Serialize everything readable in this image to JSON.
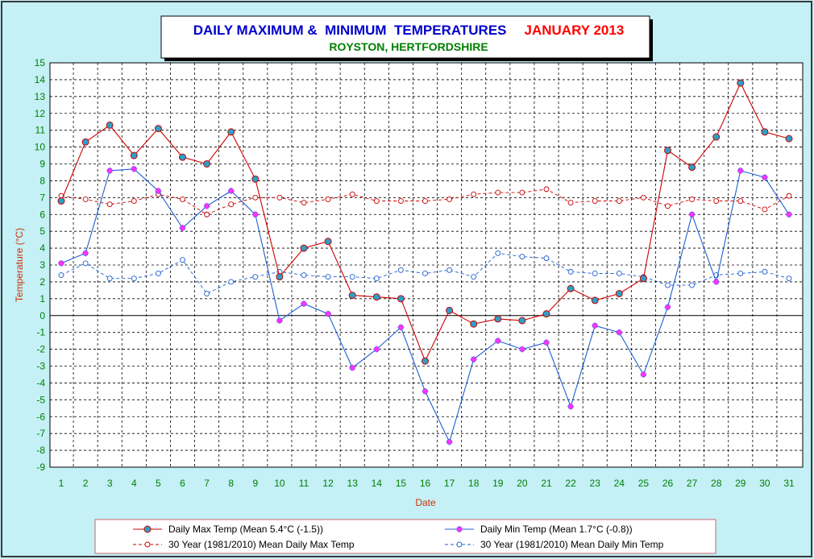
{
  "chart_data": {
    "type": "line",
    "title": "DAILY MAXIMUM &  MINIMUM  TEMPERATURES",
    "title_month": "JANUARY 2013",
    "subtitle": "ROYSTON, HERTFORDSHIRE",
    "xlabel": "Date",
    "ylabel": "Temperature (°C)",
    "ylim": [
      -9,
      15
    ],
    "yticks": [
      -9,
      -8,
      -7,
      -6,
      -5,
      -4,
      -3,
      -2,
      -1,
      0,
      1,
      2,
      3,
      4,
      5,
      6,
      7,
      8,
      9,
      10,
      11,
      12,
      13,
      14,
      15
    ],
    "x": [
      1,
      2,
      3,
      4,
      5,
      6,
      7,
      8,
      9,
      10,
      11,
      12,
      13,
      14,
      15,
      16,
      17,
      18,
      19,
      20,
      21,
      22,
      23,
      24,
      25,
      26,
      27,
      28,
      29,
      30,
      31
    ],
    "grid": true,
    "legend_position": "bottom",
    "colors": {
      "max": "#cc0000",
      "min": "#1f5fd0",
      "max_marker": "#2aa0c8",
      "min_marker": "#ff33ff",
      "axis_text": "#cc3300",
      "x_ticks": "#008000",
      "title_blue": "#0000cc",
      "title_red": "#ff0000",
      "subtitle": "#008000",
      "background": "#c4f0f6"
    },
    "series": [
      {
        "name": "Daily Max Temp (Mean 5.4°C (-1.5))",
        "style": "solid",
        "values": [
          6.8,
          10.3,
          11.3,
          9.5,
          11.1,
          9.4,
          9.0,
          10.9,
          8.1,
          2.3,
          4.0,
          4.4,
          1.2,
          1.1,
          1.0,
          -2.7,
          0.3,
          -0.5,
          -0.2,
          -0.3,
          0.1,
          1.6,
          0.9,
          1.3,
          2.2,
          9.8,
          8.8,
          10.6,
          13.8,
          10.9,
          10.5
        ]
      },
      {
        "name": "Daily Min Temp (Mean 1.7°C (-0.8))",
        "style": "solid",
        "values": [
          3.1,
          3.7,
          8.6,
          8.7,
          7.4,
          5.2,
          6.5,
          7.4,
          6.0,
          -0.3,
          0.7,
          0.1,
          -3.1,
          -2.0,
          -0.7,
          -4.5,
          -7.5,
          -2.6,
          -1.5,
          -2.0,
          -1.6,
          -5.4,
          -0.6,
          -1.0,
          -3.5,
          0.5,
          6.0,
          2.0,
          8.6,
          8.2,
          6.0
        ]
      },
      {
        "name": "30 Year (1981/2010) Mean Daily Max Temp",
        "style": "dashed",
        "values": [
          7.1,
          6.9,
          6.6,
          6.8,
          7.2,
          6.9,
          6.0,
          6.6,
          7.0,
          7.0,
          6.7,
          6.9,
          7.2,
          6.8,
          6.8,
          6.8,
          6.9,
          7.2,
          7.3,
          7.3,
          7.5,
          6.7,
          6.8,
          6.8,
          7.0,
          6.5,
          6.9,
          6.8,
          6.8,
          6.3,
          7.1
        ]
      },
      {
        "name": "30 Year (1981/2010) Mean Daily Min Temp",
        "style": "dashed",
        "values": [
          2.4,
          3.1,
          2.2,
          2.2,
          2.5,
          3.3,
          1.3,
          2.0,
          2.3,
          2.6,
          2.4,
          2.3,
          2.3,
          2.2,
          2.7,
          2.5,
          2.7,
          2.3,
          3.7,
          3.5,
          3.4,
          2.6,
          2.5,
          2.5,
          2.3,
          1.8,
          1.8,
          2.4,
          2.5,
          2.6,
          2.2
        ]
      }
    ]
  }
}
